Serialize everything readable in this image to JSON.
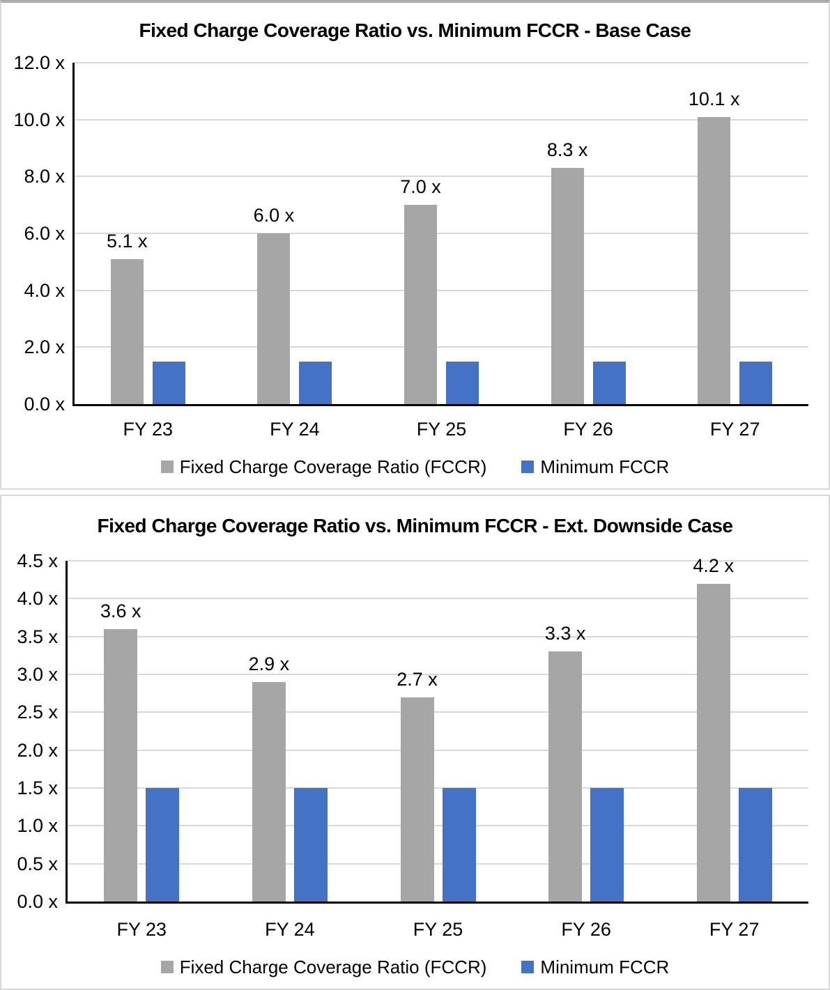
{
  "chart_data": [
    {
      "type": "bar",
      "title": "Fixed Charge Coverage Ratio vs. Minimum FCCR - Base Case",
      "categories": [
        "FY 23",
        "FY 24",
        "FY 25",
        "FY 26",
        "FY 27"
      ],
      "series": [
        {
          "name": "Fixed Charge Coverage Ratio (FCCR)",
          "color": "#A6A6A6",
          "values": [
            5.1,
            6.0,
            7.0,
            8.3,
            10.1
          ],
          "labels": [
            "5.1 x",
            "6.0 x",
            "7.0 x",
            "8.3 x",
            "10.1 x"
          ]
        },
        {
          "name": "Minimum FCCR",
          "color": "#4472C4",
          "values": [
            1.5,
            1.5,
            1.5,
            1.5,
            1.5
          ],
          "labels": null
        }
      ],
      "ylim": [
        0,
        12
      ],
      "ytick_step": 2,
      "ytick_labels": [
        "0.0 x",
        "2.0 x",
        "4.0 x",
        "6.0 x",
        "8.0 x",
        "10.0 x",
        "12.0 x"
      ],
      "xlabel": "",
      "ylabel": "",
      "grid": true,
      "legend_position": "bottom"
    },
    {
      "type": "bar",
      "title": "Fixed Charge Coverage Ratio vs. Minimum FCCR - Ext. Downside Case",
      "categories": [
        "FY 23",
        "FY 24",
        "FY 25",
        "FY 26",
        "FY 27"
      ],
      "series": [
        {
          "name": "Fixed Charge Coverage Ratio (FCCR)",
          "color": "#A6A6A6",
          "values": [
            3.6,
            2.9,
            2.7,
            3.3,
            4.2
          ],
          "labels": [
            "3.6 x",
            "2.9 x",
            "2.7 x",
            "3.3 x",
            "4.2 x"
          ]
        },
        {
          "name": "Minimum FCCR",
          "color": "#4472C4",
          "values": [
            1.5,
            1.5,
            1.5,
            1.5,
            1.5
          ],
          "labels": null
        }
      ],
      "ylim": [
        0,
        4.5
      ],
      "ytick_step": 0.5,
      "ytick_labels": [
        "0.0 x",
        "0.5 x",
        "1.0 x",
        "1.5 x",
        "2.0 x",
        "2.5 x",
        "3.0 x",
        "3.5 x",
        "4.0 x",
        "4.5 x"
      ],
      "xlabel": "",
      "ylabel": "",
      "grid": true,
      "legend_position": "bottom"
    }
  ],
  "colors": {
    "fccr_bar": "#A6A6A6",
    "minimum_fccr_bar": "#4472C4",
    "gridline": "#D9D9D9",
    "axis": "#000000",
    "panel_border": "#D8D8D8"
  }
}
